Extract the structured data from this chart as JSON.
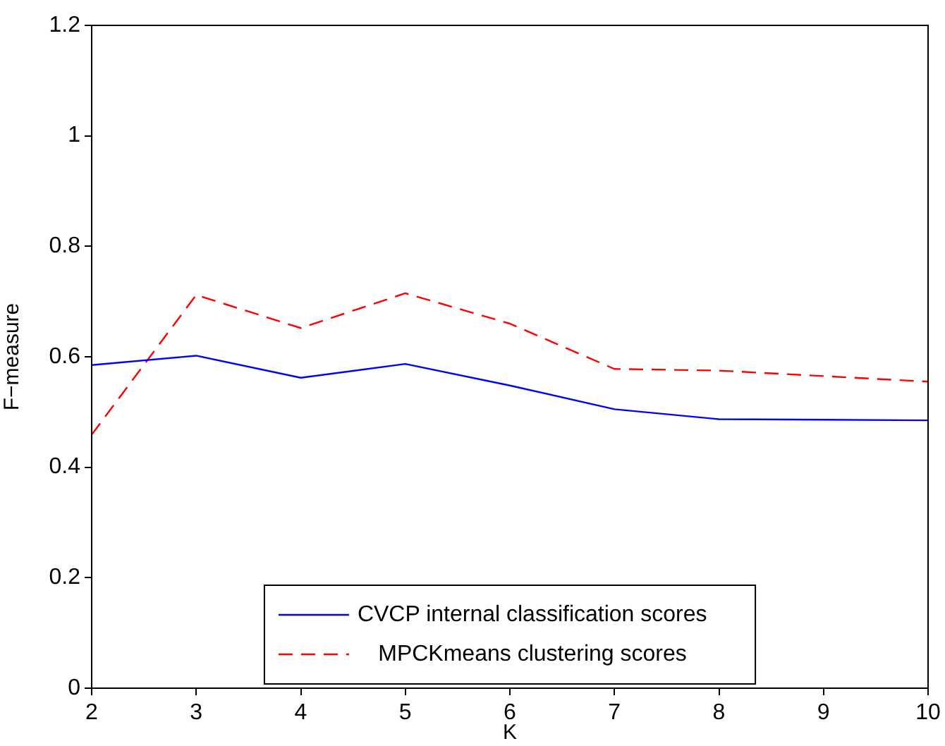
{
  "chart_data": {
    "type": "line",
    "xlabel": "K",
    "ylabel": "F−measure",
    "x": [
      2,
      3,
      4,
      5,
      6,
      7,
      8,
      9,
      10
    ],
    "series": [
      {
        "name": "CVCP internal classification scores",
        "color": "#0000ff",
        "line_style": "solid",
        "values": [
          0.585,
          0.602,
          0.562,
          0.587,
          0.548,
          0.505,
          0.487,
          0.486,
          0.485
        ]
      },
      {
        "name": "MPCKmeans clustering scores",
        "color": "#ff0000",
        "line_style": "dashed",
        "values": [
          0.459,
          0.712,
          0.652,
          0.715,
          0.66,
          0.578,
          0.575,
          0.565,
          0.555
        ]
      }
    ],
    "xlim": [
      2,
      10
    ],
    "xticks": [
      2,
      3,
      4,
      5,
      6,
      7,
      8,
      9,
      10
    ],
    "ylim": [
      0,
      1.2
    ],
    "yticks": [
      0,
      0.2,
      0.4,
      0.6,
      0.8,
      1,
      1.2
    ],
    "grid": false,
    "legend": "bottom",
    "marker": "none"
  }
}
